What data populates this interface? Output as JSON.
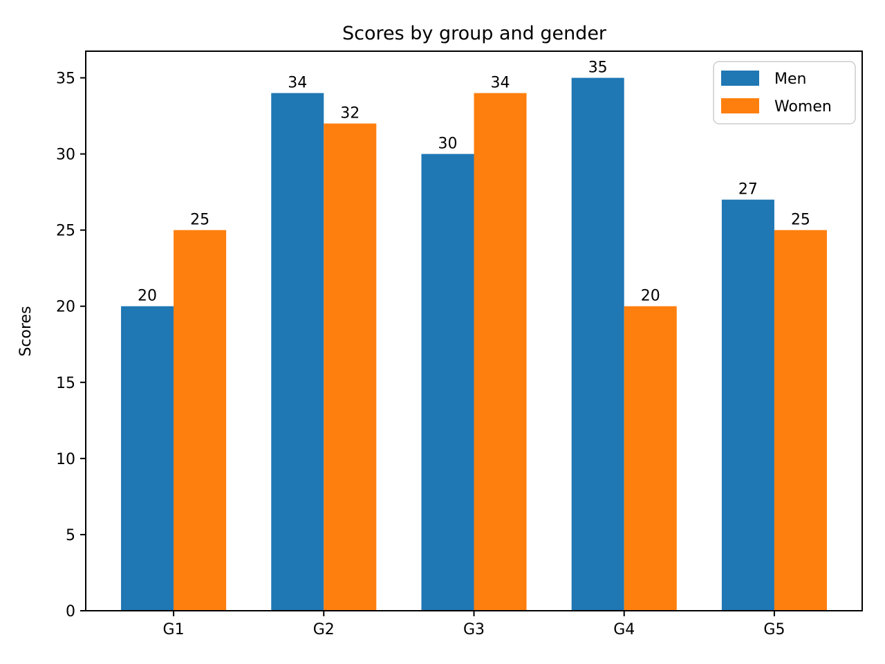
{
  "chart_data": {
    "type": "bar",
    "title": "Scores by group and gender",
    "xlabel": "",
    "ylabel": "Scores",
    "categories": [
      "G1",
      "G2",
      "G3",
      "G4",
      "G5"
    ],
    "series": [
      {
        "name": "Men",
        "color": "#1f77b4",
        "values": [
          20,
          34,
          30,
          35,
          27
        ]
      },
      {
        "name": "Women",
        "color": "#ff7f0e",
        "values": [
          25,
          32,
          34,
          20,
          25
        ]
      }
    ],
    "yticks": [
      0,
      5,
      10,
      15,
      20,
      25,
      30,
      35
    ],
    "ylim": [
      0,
      36.75
    ],
    "bar_labels": true,
    "grid": false,
    "legend": {
      "position": "upper right",
      "border_color": "#cccccc",
      "background": "#ffffff"
    },
    "colors": {
      "spine": "#000000",
      "text": "#000000"
    }
  }
}
